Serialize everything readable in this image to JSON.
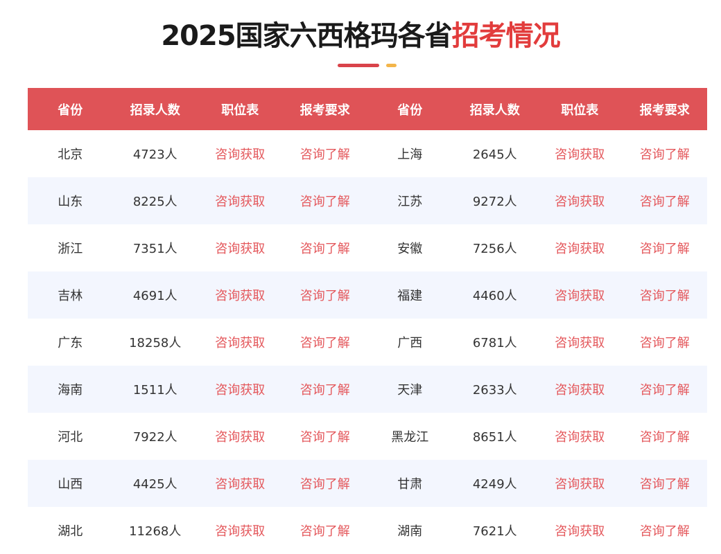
{
  "title": {
    "main": "2025国家六西格玛各省",
    "highlight": "招考情况"
  },
  "colors": {
    "accent": "#df5357",
    "highlight": "#e23c3c",
    "decor_yellow": "#f3b54a",
    "alt_row": "#f3f6fe",
    "link": "#e4585c"
  },
  "headers": [
    "省份",
    "招录人数",
    "职位表",
    "报考要求",
    "省份",
    "招录人数",
    "职位表",
    "报考要求"
  ],
  "rows": [
    {
      "left": {
        "province": "北京",
        "count": "4723人",
        "positions": "咨询获取",
        "requirements": "咨询了解"
      },
      "right": {
        "province": "上海",
        "count": "2645人",
        "positions": "咨询获取",
        "requirements": "咨询了解"
      }
    },
    {
      "left": {
        "province": "山东",
        "count": "8225人",
        "positions": "咨询获取",
        "requirements": "咨询了解"
      },
      "right": {
        "province": "江苏",
        "count": "9272人",
        "positions": "咨询获取",
        "requirements": "咨询了解"
      }
    },
    {
      "left": {
        "province": "浙江",
        "count": "7351人",
        "positions": "咨询获取",
        "requirements": "咨询了解"
      },
      "right": {
        "province": "安徽",
        "count": "7256人",
        "positions": "咨询获取",
        "requirements": "咨询了解"
      }
    },
    {
      "left": {
        "province": "吉林",
        "count": "4691人",
        "positions": "咨询获取",
        "requirements": "咨询了解"
      },
      "right": {
        "province": "福建",
        "count": "4460人",
        "positions": "咨询获取",
        "requirements": "咨询了解"
      }
    },
    {
      "left": {
        "province": "广东",
        "count": "18258人",
        "positions": "咨询获取",
        "requirements": "咨询了解"
      },
      "right": {
        "province": "广西",
        "count": "6781人",
        "positions": "咨询获取",
        "requirements": "咨询了解"
      }
    },
    {
      "left": {
        "province": "海南",
        "count": "1511人",
        "positions": "咨询获取",
        "requirements": "咨询了解"
      },
      "right": {
        "province": "天津",
        "count": "2633人",
        "positions": "咨询获取",
        "requirements": "咨询了解"
      }
    },
    {
      "left": {
        "province": "河北",
        "count": "7922人",
        "positions": "咨询获取",
        "requirements": "咨询了解"
      },
      "right": {
        "province": "黑龙江",
        "count": "8651人",
        "positions": "咨询获取",
        "requirements": "咨询了解"
      }
    },
    {
      "left": {
        "province": "山西",
        "count": "4425人",
        "positions": "咨询获取",
        "requirements": "咨询了解"
      },
      "right": {
        "province": "甘肃",
        "count": "4249人",
        "positions": "咨询获取",
        "requirements": "咨询了解"
      }
    },
    {
      "left": {
        "province": "湖北",
        "count": "11268人",
        "positions": "咨询获取",
        "requirements": "咨询了解"
      },
      "right": {
        "province": "湖南",
        "count": "7621人",
        "positions": "咨询获取",
        "requirements": "咨询了解"
      }
    }
  ]
}
